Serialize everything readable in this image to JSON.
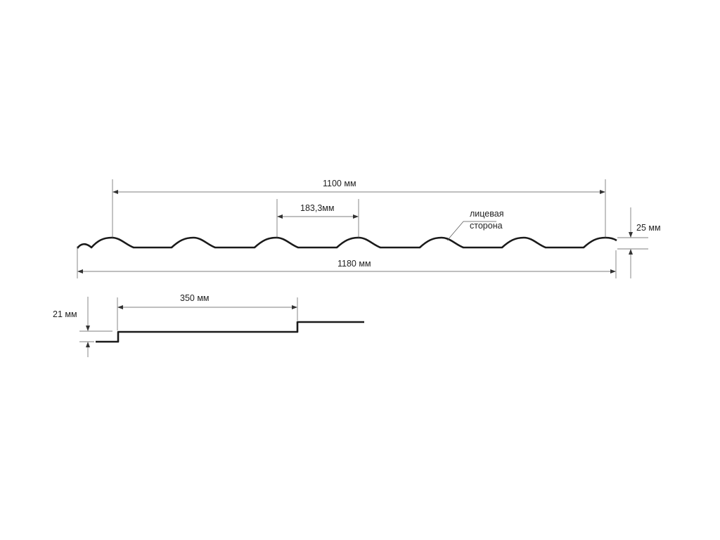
{
  "labels": {
    "overall_cover_width": "1100 мм",
    "wave_pitch": "183,3мм",
    "face_side_line1": "лицевая",
    "face_side_line2": "сторона",
    "wave_height": "25 мм",
    "total_width": "1180 мм",
    "step_length": "350 мм",
    "step_height": "21 мм"
  },
  "colors": {
    "profile": "#1a1a1a",
    "dimension": "#555555"
  }
}
